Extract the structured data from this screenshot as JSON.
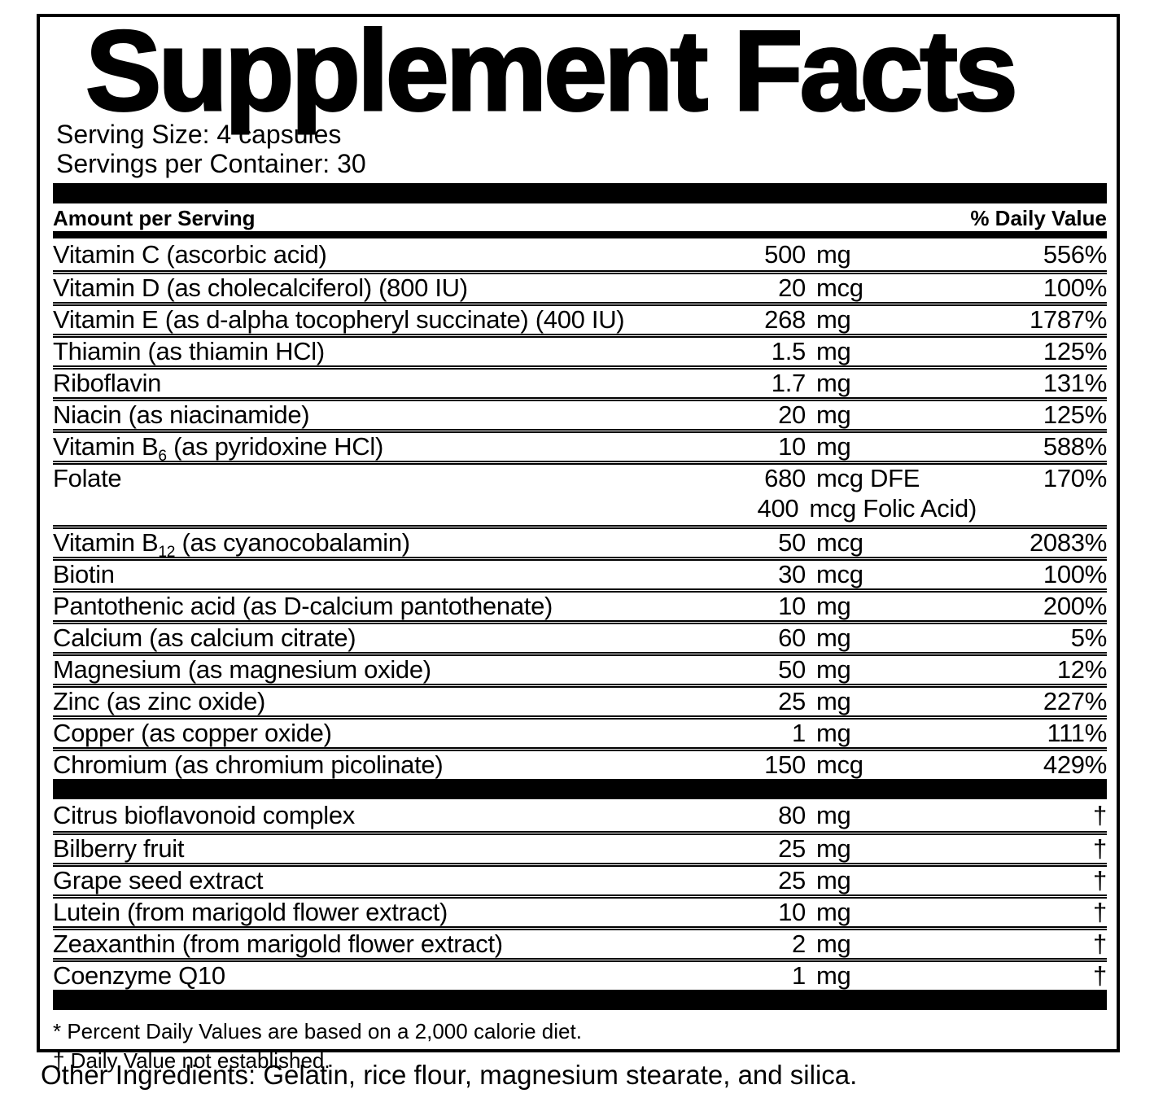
{
  "title": "Supplement Facts",
  "serving": {
    "size": "Serving Size: 4 capsules",
    "per_container": "Servings per Container: 30"
  },
  "header": {
    "amount_label": "Amount per Serving",
    "dv_label": "% Daily Value"
  },
  "colors": {
    "ink": "#000000",
    "background": "#ffffff"
  },
  "table": {
    "rows": [
      {
        "name_pre": "Vitamin C (ascorbic acid)",
        "num": "500",
        "unit": "mg",
        "dv": "556%"
      },
      {
        "name_pre": "Vitamin D (as cholecalciferol) (800 IU)",
        "num": "20",
        "unit": "mcg",
        "dv": "100%"
      },
      {
        "name_pre": "Vitamin E (as d-alpha tocopheryl succinate) (400 IU)",
        "num": "268",
        "unit": "mg",
        "dv": "1787%"
      },
      {
        "name_pre": "Thiamin (as thiamin HCl)",
        "num": "1.5",
        "unit": "mg",
        "dv": "125%"
      },
      {
        "name_pre": "Riboflavin",
        "num": "1.7",
        "unit": "mg",
        "dv": "131%"
      },
      {
        "name_pre": "Niacin (as niacinamide)",
        "num": "20",
        "unit": "mg",
        "dv": "125%"
      },
      {
        "name_pre": "Vitamin B",
        "name_sub": "6",
        "name_post": " (as pyridoxine HCl)",
        "num": "10",
        "unit": "mg",
        "dv": "588%"
      },
      {
        "name_pre": "Folate",
        "num": "680",
        "unit": "mcg DFE",
        "dv": "170%"
      },
      {
        "name_pre": "",
        "num": "400",
        "unit": "mcg Folic Acid)",
        "dv": ""
      },
      {
        "name_pre": "Vitamin B",
        "name_sub": "12",
        "name_post": " (as cyanocobalamin)",
        "num": "50",
        "unit": "mcg",
        "dv": "2083%"
      },
      {
        "name_pre": "Biotin",
        "num": "30",
        "unit": "mcg",
        "dv": "100%"
      },
      {
        "name_pre": "Pantothenic acid (as D-calcium pantothenate)",
        "num": "10",
        "unit": "mg",
        "dv": "200%"
      },
      {
        "name_pre": "Calcium (as calcium citrate)",
        "num": "60",
        "unit": "mg",
        "dv": "5%"
      },
      {
        "name_pre": "Magnesium (as magnesium oxide)",
        "num": "50",
        "unit": "mg",
        "dv": "12%"
      },
      {
        "name_pre": "Zinc (as zinc oxide)",
        "num": "25",
        "unit": "mg",
        "dv": "227%"
      },
      {
        "name_pre": "Copper (as copper oxide)",
        "num": "1",
        "unit": "mg",
        "dv": "111%"
      },
      {
        "name_pre": "Chromium (as chromium picolinate)",
        "num": "150",
        "unit": "mcg",
        "dv": "429%"
      }
    ],
    "botanicals": [
      {
        "name_pre": "Citrus bioflavonoid complex",
        "num": "80",
        "unit": "mg",
        "dv": "†"
      },
      {
        "name_pre": "Bilberry fruit",
        "num": "25",
        "unit": "mg",
        "dv": "†"
      },
      {
        "name_pre": "Grape seed extract",
        "num": "25",
        "unit": "mg",
        "dv": "†"
      },
      {
        "name_pre": "Lutein (from marigold flower extract)",
        "num": "10",
        "unit": "mg",
        "dv": "†"
      },
      {
        "name_pre": "Zeaxanthin (from marigold flower extract)",
        "num": "2",
        "unit": "mg",
        "dv": "†"
      },
      {
        "name_pre": "Coenzyme Q10",
        "num": "1",
        "unit": "mg",
        "dv": "†"
      }
    ]
  },
  "footnotes": {
    "percent": "* Percent Daily Values are based on a 2,000 calorie diet.",
    "dagger": "† Daily Value not established."
  },
  "other_ingredients": "Other Ingredients: Gelatin, rice flour, magnesium stearate, and silica."
}
